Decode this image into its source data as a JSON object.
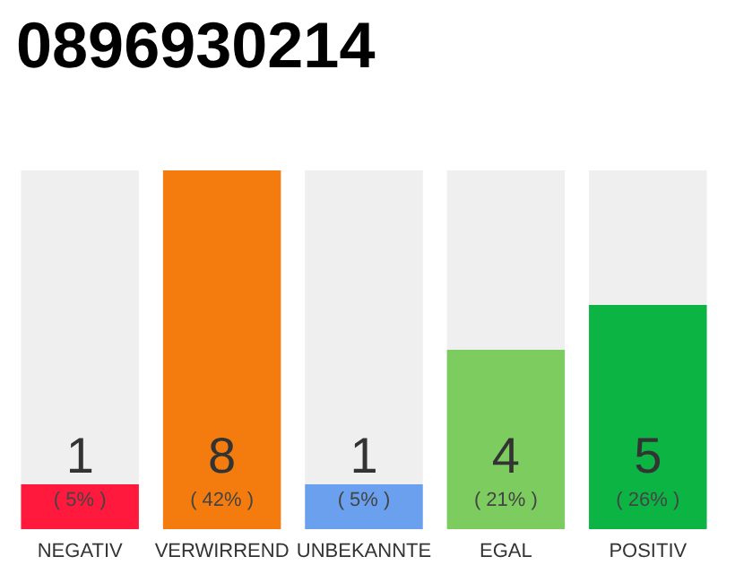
{
  "chart_data": {
    "type": "bar",
    "title": "0896930214",
    "categories": [
      "NEGATIV",
      "VERWIRREND",
      "UNBEKANNTE",
      "EGAL",
      "POSITIV"
    ],
    "values": [
      1,
      8,
      1,
      4,
      5
    ],
    "colors": [
      "#ff1a3d",
      "#f47c0f",
      "#6aa0ee",
      "#7ccc60",
      "#0cb444"
    ],
    "value_labels": [
      "1\n( 5% )",
      "8\n( 42% )",
      "1\n( 5% )",
      "4\n( 21% )",
      "5\n( 26% )"
    ]
  }
}
